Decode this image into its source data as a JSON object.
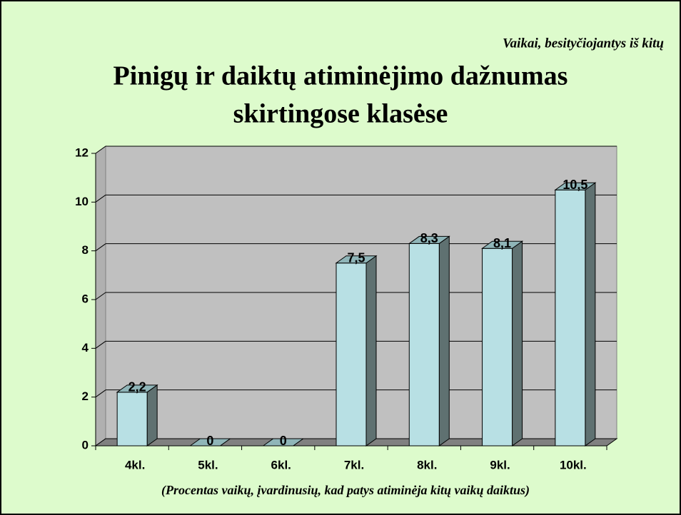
{
  "chart_data": {
    "type": "bar3d",
    "note_text": "Vaikai, besityčiojantys iš kitų",
    "title": [
      "Pinigų ir daiktų atiminėjimo dažnumas",
      "skirtingose klasėse"
    ],
    "x_label": "(Procentas vaikų, įvardinusių, kad patys atiminėja kitų vaikų daiktus)",
    "categories": [
      "4kl.",
      "5kl.",
      "6kl.",
      "7kl.",
      "8kl.",
      "9kl.",
      "10kl."
    ],
    "values": [
      2.2,
      0,
      0,
      7.5,
      8.3,
      8.1,
      10.5
    ],
    "value_labels": [
      "2,2",
      "0",
      "0",
      "7,5",
      "8,3",
      "8,1",
      "10,5"
    ],
    "color": "#b8e0e4",
    "ylim": [
      0,
      12
    ],
    "yticks": [
      0,
      2,
      4,
      6,
      8,
      10,
      12
    ],
    "grid": true
  }
}
